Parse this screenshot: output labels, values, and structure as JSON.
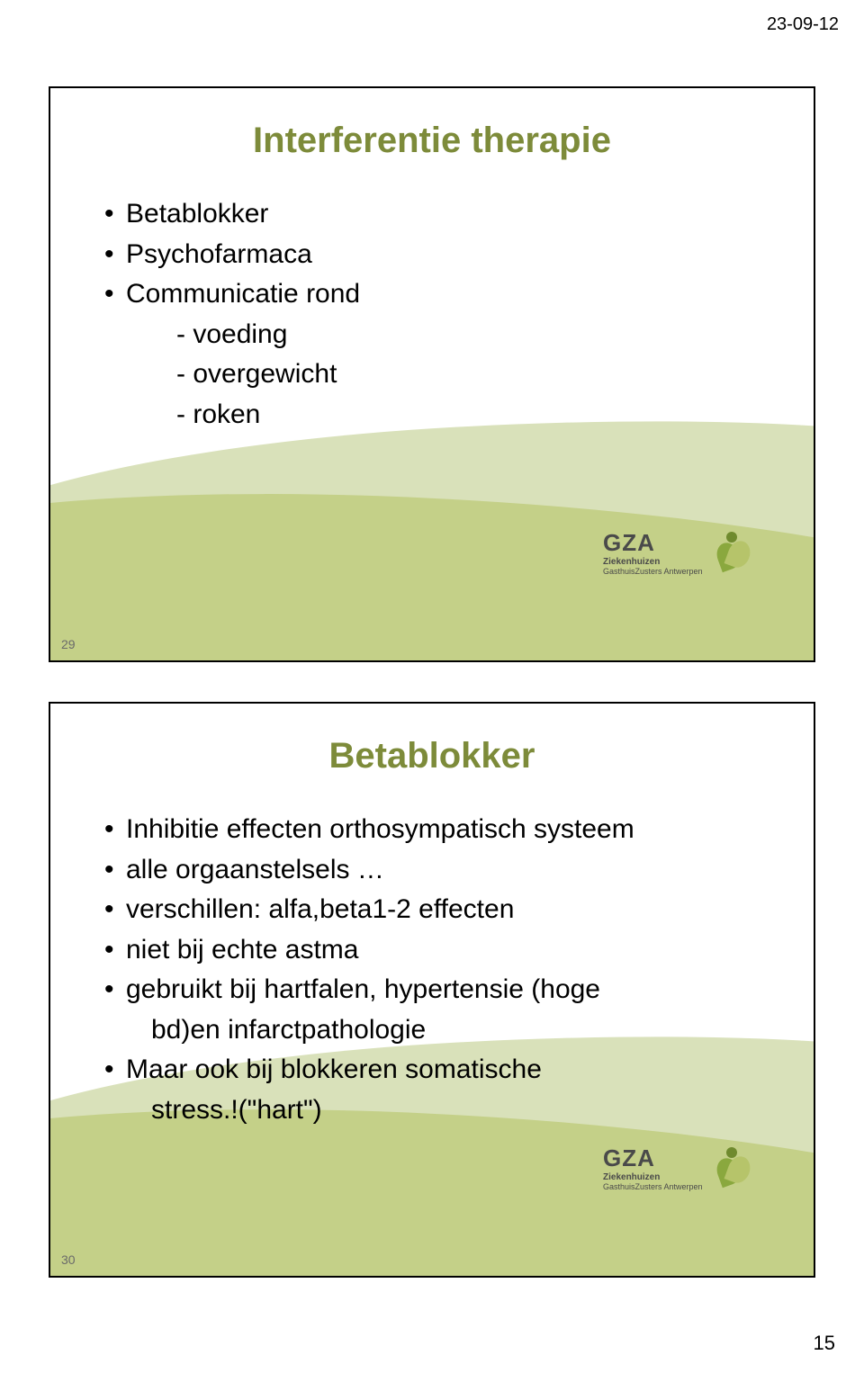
{
  "page": {
    "date": "23-09-12",
    "number": "15",
    "background_color": "#ffffff",
    "slide_border_color": "#000000"
  },
  "colors": {
    "title": "#7d8b3a",
    "body_text": "#000000",
    "wave_back": "#d9e1ba",
    "wave_front": "#c4d088",
    "slide_number": "#6a6a6a",
    "logo_leaf_dark": "#8aa83e",
    "logo_leaf_light": "#b6c46a",
    "logo_dot": "#6f8a2e",
    "logo_text": "#4a4a4a"
  },
  "typography": {
    "title_fontsize_pt": 30,
    "body_fontsize_pt": 22,
    "date_fontsize_pt": 15,
    "pagenum_fontsize_pt": 16,
    "slide_num_fontsize_pt": 10,
    "font_family": "Arial"
  },
  "logo": {
    "brand": "GZA",
    "line1": "Ziekenhuizen",
    "line2": "GasthuisZusters Antwerpen"
  },
  "slide1": {
    "number": "29",
    "title": "Interferentie therapie",
    "items": {
      "b1": "Betablokker",
      "b2": "Psychofarmaca",
      "b3": "Communicatie rond",
      "s1": "-  voeding",
      "s2": "-  overgewicht",
      "s3": "-  roken"
    }
  },
  "slide2": {
    "number": "30",
    "title": "Betablokker",
    "items": {
      "b1": "Inhibitie effecten orthosympatisch systeem",
      "b2": " alle orgaanstelsels …",
      "b3": " verschillen: alfa,beta1-2 effecten",
      "b4": " niet bij echte astma",
      "b5": " gebruikt bij hartfalen, hypertensie (hoge",
      "b5wrap": "bd)en infarctpathologie",
      "b6": "Maar ook bij blokkeren somatische",
      "b6wrap": "stress.!(\"hart\")"
    }
  }
}
